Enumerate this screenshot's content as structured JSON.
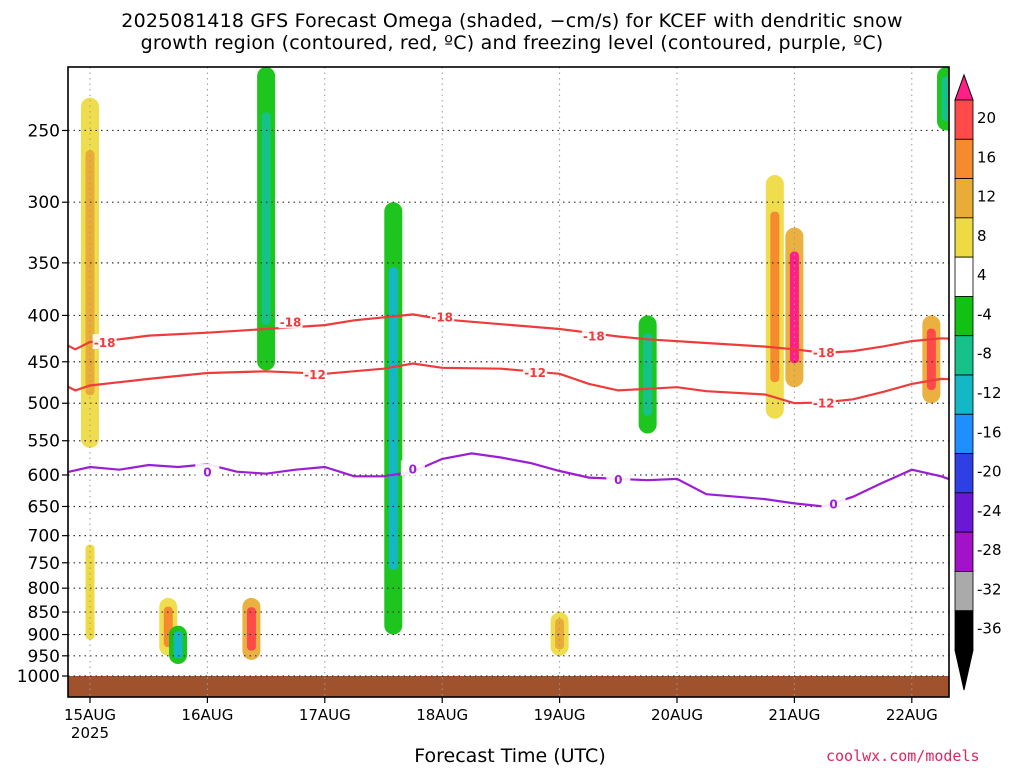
{
  "header": {
    "title_line1": "2025081418 GFS Forecast Omega (shaded, −cm/s) for KCEF with dendritic snow",
    "title_line2": "growth region (contoured, red, ºC) and freezing level (contoured, purple, ºC)"
  },
  "footer": {
    "xlabel": "Forecast Time (UTC)",
    "credit": "coolwx.com/models"
  },
  "chart_data": {
    "type": "heatmap",
    "title": "2025081418 GFS Forecast Omega (shaded, −cm/s) for KCEF with dendritic snow growth region (contoured, red, ºC) and freezing level (contoured, purple, ºC)",
    "xlabel": "Forecast Time (UTC)",
    "ylabel": "",
    "x_ticks": [
      "15AUG",
      "16AUG",
      "17AUG",
      "18AUG",
      "19AUG",
      "20AUG",
      "21AUG",
      "22AUG"
    ],
    "x_year_label": "2025",
    "x_range_hours": [
      -6,
      183
    ],
    "y_scale": "log",
    "y_ticks": [
      250,
      300,
      350,
      400,
      450,
      500,
      550,
      600,
      650,
      700,
      750,
      800,
      850,
      900,
      950,
      1000
    ],
    "y_range": [
      200,
      1030
    ],
    "grid": true,
    "colorbar": {
      "ticks": [
        20,
        16,
        12,
        8,
        4,
        -4,
        -8,
        -12,
        -16,
        -20,
        -24,
        -28,
        -32,
        -36
      ],
      "colors": [
        "#ff1f86",
        "#ff4a4a",
        "#f58a2e",
        "#e9ac36",
        "#eedb44",
        "#ffffff",
        "#12c212",
        "#16c28a",
        "#13b7c6",
        "#1e8fff",
        "#2f3fe6",
        "#6b18d6",
        "#a112c8",
        "#aaaaaa",
        "#000000"
      ]
    },
    "contours": [
      {
        "name": "-18",
        "color": "#ee3b3b",
        "label": "-18",
        "points": [
          [
            -6,
            428
          ],
          [
            -3,
            436
          ],
          [
            0,
            428
          ],
          [
            6,
            425
          ],
          [
            12,
            421
          ],
          [
            24,
            418
          ],
          [
            36,
            414
          ],
          [
            48,
            410
          ],
          [
            54,
            405
          ],
          [
            60,
            402
          ],
          [
            66,
            399
          ],
          [
            72,
            404
          ],
          [
            84,
            409
          ],
          [
            96,
            414
          ],
          [
            102,
            418
          ],
          [
            108,
            422
          ],
          [
            114,
            425
          ],
          [
            126,
            429
          ],
          [
            138,
            433
          ],
          [
            144,
            436
          ],
          [
            150,
            440
          ],
          [
            156,
            438
          ],
          [
            162,
            433
          ],
          [
            168,
            427
          ],
          [
            174,
            424
          ],
          [
            183,
            426
          ]
        ],
        "label_positions": [
          [
            3,
            428
          ],
          [
            41,
            406
          ],
          [
            72,
            401
          ],
          [
            103,
            421
          ],
          [
            150,
            439
          ]
        ]
      },
      {
        "name": "-12",
        "color": "#ee3b3b",
        "label": "-12",
        "points": [
          [
            -6,
            475
          ],
          [
            -3,
            484
          ],
          [
            0,
            478
          ],
          [
            6,
            474
          ],
          [
            12,
            470
          ],
          [
            24,
            463
          ],
          [
            36,
            461
          ],
          [
            48,
            464
          ],
          [
            60,
            458
          ],
          [
            66,
            452
          ],
          [
            72,
            457
          ],
          [
            84,
            458
          ],
          [
            96,
            464
          ],
          [
            102,
            476
          ],
          [
            108,
            484
          ],
          [
            114,
            482
          ],
          [
            120,
            480
          ],
          [
            126,
            485
          ],
          [
            138,
            489
          ],
          [
            144,
            500
          ],
          [
            150,
            499
          ],
          [
            156,
            495
          ],
          [
            162,
            486
          ],
          [
            168,
            476
          ],
          [
            174,
            470
          ],
          [
            183,
            472
          ]
        ],
        "label_positions": [
          [
            46,
            464
          ],
          [
            91,
            462
          ],
          [
            150,
            499
          ]
        ]
      },
      {
        "name": "0",
        "color": "#9b1fd2",
        "label": "0",
        "points": [
          [
            -6,
            598
          ],
          [
            0,
            588
          ],
          [
            6,
            592
          ],
          [
            12,
            585
          ],
          [
            18,
            588
          ],
          [
            24,
            584
          ],
          [
            30,
            595
          ],
          [
            36,
            598
          ],
          [
            42,
            592
          ],
          [
            48,
            588
          ],
          [
            54,
            602
          ],
          [
            60,
            602
          ],
          [
            66,
            595
          ],
          [
            72,
            576
          ],
          [
            78,
            568
          ],
          [
            84,
            574
          ],
          [
            90,
            582
          ],
          [
            96,
            594
          ],
          [
            102,
            604
          ],
          [
            108,
            606
          ],
          [
            114,
            608
          ],
          [
            120,
            606
          ],
          [
            126,
            630
          ],
          [
            138,
            638
          ],
          [
            144,
            645
          ],
          [
            150,
            650
          ],
          [
            156,
            634
          ],
          [
            162,
            612
          ],
          [
            168,
            592
          ],
          [
            174,
            602
          ],
          [
            180,
            618
          ],
          [
            183,
            622
          ]
        ],
        "label_positions": [
          [
            24,
            595
          ],
          [
            66,
            590
          ],
          [
            108,
            606
          ],
          [
            152,
            645
          ]
        ]
      }
    ],
    "shaded_regions": [
      {
        "t": 0,
        "p_top": 230,
        "p_bottom": 560,
        "omega": 10
      },
      {
        "t": 0,
        "p_top": 680,
        "p_bottom": 960,
        "omega": 6
      },
      {
        "t": 16,
        "p_top": 820,
        "p_bottom": 950,
        "omega": 12
      },
      {
        "t": 18,
        "p_top": 880,
        "p_bottom": 970,
        "omega": -12
      },
      {
        "t": 33,
        "p_top": 820,
        "p_bottom": 960,
        "omega": 16
      },
      {
        "t": 36,
        "p_top": 200,
        "p_bottom": 460,
        "omega": -8
      },
      {
        "t": 62,
        "p_top": 300,
        "p_bottom": 900,
        "omega": -14
      },
      {
        "t": 96,
        "p_top": 850,
        "p_bottom": 950,
        "omega": 10
      },
      {
        "t": 114,
        "p_top": 400,
        "p_bottom": 540,
        "omega": -10
      },
      {
        "t": 140,
        "p_top": 280,
        "p_bottom": 520,
        "omega": 14
      },
      {
        "t": 144,
        "p_top": 320,
        "p_bottom": 480,
        "omega": 20
      },
      {
        "t": 172,
        "p_top": 400,
        "p_bottom": 500,
        "omega": 18
      },
      {
        "t": 175,
        "p_top": 200,
        "p_bottom": 250,
        "omega": -8
      }
    ]
  }
}
